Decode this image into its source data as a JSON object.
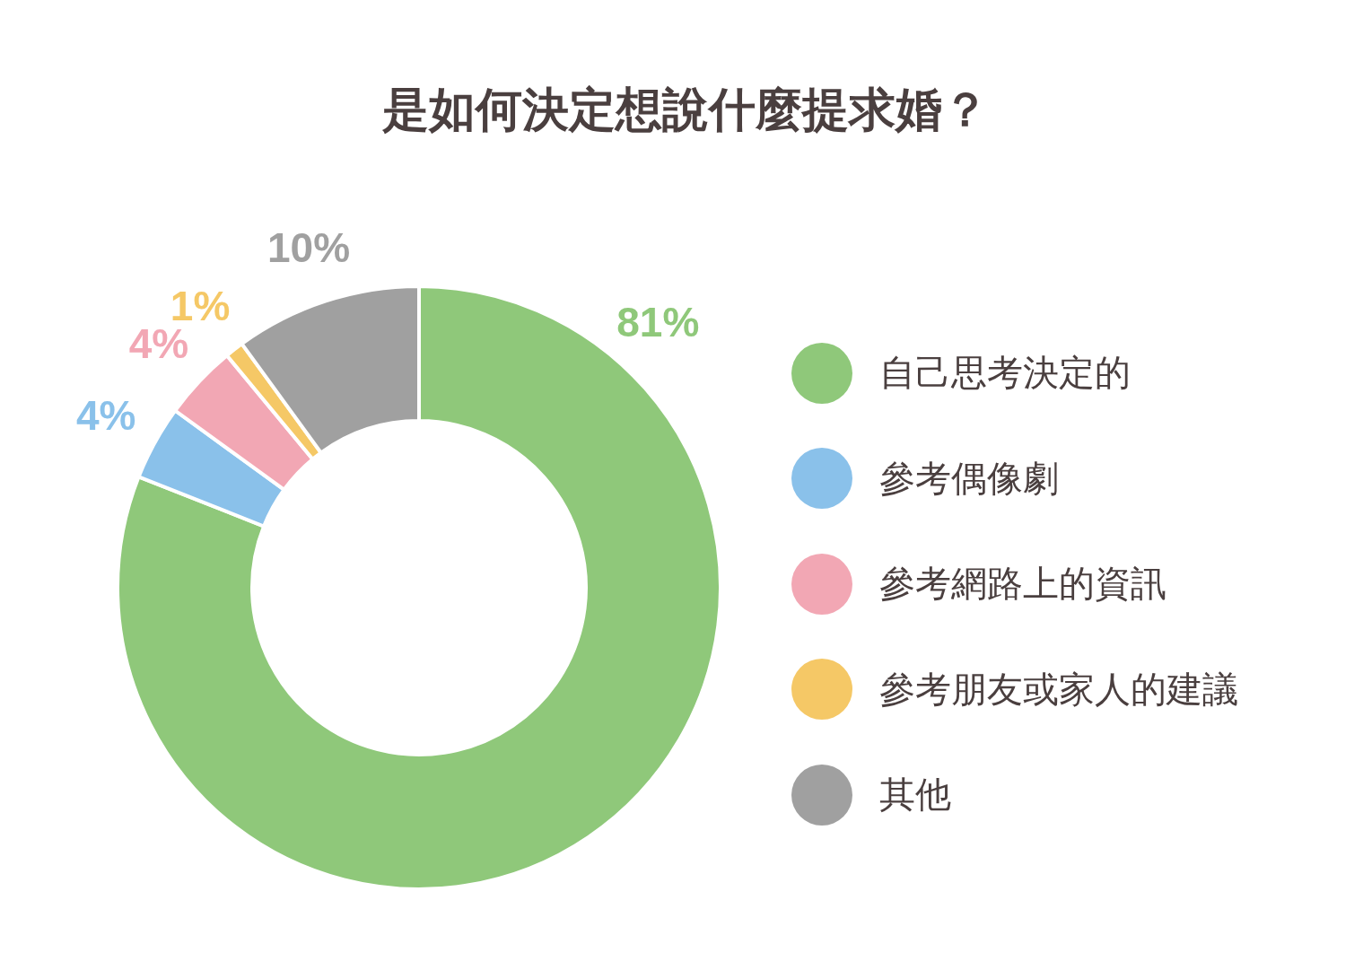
{
  "chart_data": {
    "type": "donut",
    "title": "是如何決定想說什麼提求婚？",
    "categories": [
      "自己思考決定的",
      "參考偶像劇",
      "參考網路上的資訊",
      "參考朋友或家人的建議",
      "其他"
    ],
    "values": [
      81,
      4,
      4,
      1,
      10
    ],
    "value_labels": [
      "81%",
      "4%",
      "4%",
      "1%",
      "10%"
    ],
    "colors": [
      "#8fc87a",
      "#8ac1ea",
      "#f2a7b4",
      "#f5c866",
      "#a0a0a0"
    ],
    "legend": "right"
  }
}
